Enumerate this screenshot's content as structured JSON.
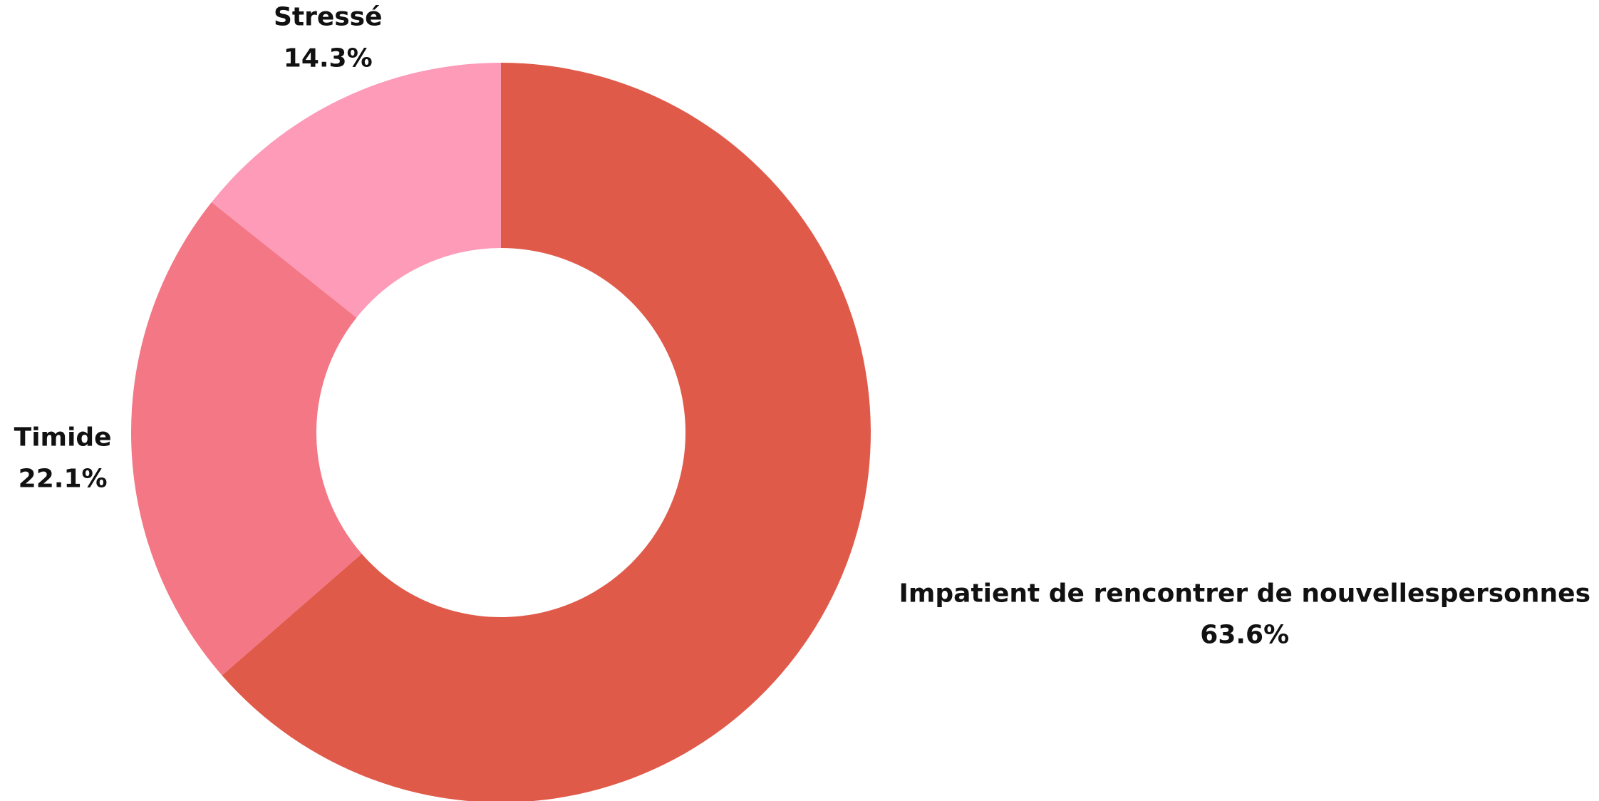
{
  "chart_data": {
    "type": "donut",
    "categories": [
      "Impatient de rencontrer de nouvellespersonnes",
      "Timide",
      "Stressé"
    ],
    "values": [
      63.6,
      22.1,
      14.3
    ],
    "value_labels": [
      "63.6%",
      "22.1%",
      "14.3%"
    ],
    "colors": [
      "#e05a4a",
      "#f47786",
      "#fd9bb8"
    ]
  }
}
